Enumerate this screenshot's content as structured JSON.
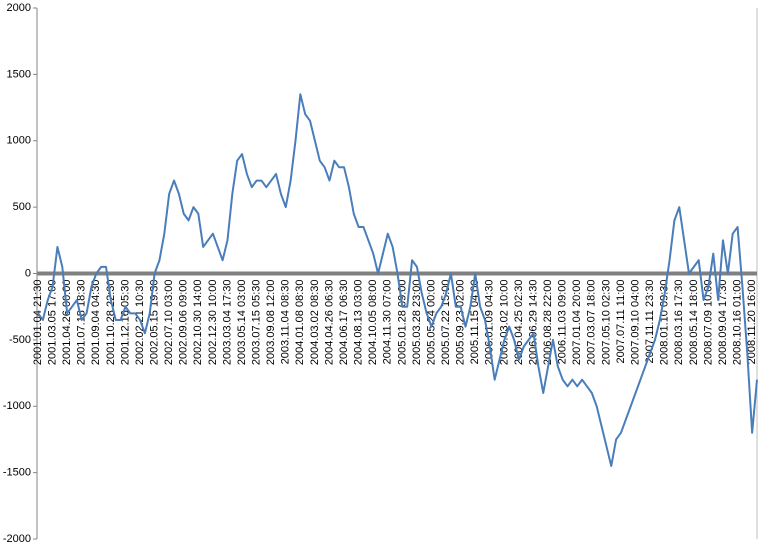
{
  "chart_data": {
    "type": "line",
    "categories": [
      "2001.01.04 21:30",
      null,
      null,
      "2001.03.05 17:00",
      null,
      null,
      "2001.04.26 00:00",
      null,
      null,
      "2001.07.18 18:30",
      null,
      null,
      "2001.09.04 04:30",
      null,
      null,
      "2001.10.28 22:30",
      null,
      null,
      "2001.12.16 05:30",
      null,
      null,
      "2002.02.21 10:30",
      null,
      null,
      "2002.05.15 19:30",
      null,
      null,
      "2002.07.10 03:00",
      null,
      null,
      "2002.09.06 09:00",
      null,
      null,
      "2002.10.30 14:00",
      null,
      null,
      "2002.12.30 10:00",
      null,
      null,
      "2003.03.04 17:30",
      null,
      null,
      "2003.05.14 03:00",
      null,
      null,
      "2003.07.15 05:30",
      null,
      null,
      "2003.09.08 12:00",
      null,
      null,
      "2003.11.04 08:30",
      null,
      null,
      "2004.01.08 08:30",
      null,
      null,
      "2004.03.02 08:30",
      null,
      null,
      "2004.04.26 06:30",
      null,
      null,
      "2004.06.17 06:30",
      null,
      null,
      "2004.08.13 03:00",
      null,
      null,
      "2004.10.05 08:00",
      null,
      null,
      "2004.11.30 07:00",
      null,
      null,
      "2005.01.28 09:00",
      null,
      null,
      "2005.03.28 23:00",
      null,
      null,
      "2005.05.24 00:00",
      null,
      null,
      "2005.07.22 15:00",
      null,
      null,
      "2005.09.23 02:00",
      null,
      null,
      "2005.11.15 04:00",
      null,
      null,
      "2006.01.09 04:30",
      null,
      null,
      "2006.03.02 10:00",
      null,
      null,
      "2006.04.25 02:30",
      null,
      null,
      "2006.06.29 14:30",
      null,
      null,
      "2006.08.28 22:00",
      null,
      null,
      "2006.11.03 09:00",
      null,
      null,
      "2007.01.04 20:00",
      null,
      null,
      "2007.03.07 18:00",
      null,
      null,
      "2007.05.10 02:30",
      null,
      null,
      "2007.07.11 11:00",
      null,
      null,
      "2007.09.10 04:00",
      null,
      null,
      "2007.11.11 23:30",
      null,
      null,
      "2008.01.10 09:30",
      null,
      null,
      "2008.03.16 17:30",
      null,
      null,
      "2008.05.14 18:00",
      null,
      null,
      "2008.07.09 10:00",
      null,
      null,
      "2008.09.04 17:30",
      null,
      null,
      "2008.10.16 01:00",
      null,
      null,
      "2008.11.20 16:00",
      null
    ],
    "series": [
      {
        "color": "#4a7ebb",
        "values": [
          -300,
          -350,
          -200,
          -100,
          200,
          50,
          -300,
          -250,
          -200,
          -350,
          -300,
          -100,
          0,
          50,
          50,
          -200,
          -350,
          -350,
          -250,
          -300,
          -300,
          -350,
          -450,
          -300,
          0,
          100,
          300,
          600,
          700,
          600,
          450,
          400,
          500,
          450,
          200,
          250,
          300,
          200,
          100,
          250,
          600,
          850,
          900,
          750,
          650,
          700,
          700,
          650,
          700,
          750,
          600,
          500,
          700,
          1000,
          1350,
          1200,
          1150,
          1000,
          850,
          800,
          700,
          850,
          800,
          800,
          650,
          450,
          350,
          350,
          250,
          150,
          0,
          150,
          300,
          200,
          0,
          -250,
          -250,
          100,
          50,
          -150,
          -300,
          -400,
          -300,
          -250,
          -150,
          0,
          -250,
          -250,
          -400,
          -250,
          0,
          -250,
          -350,
          -550,
          -800,
          -650,
          -500,
          -400,
          -500,
          -650,
          -550,
          -500,
          -450,
          -700,
          -900,
          -700,
          -500,
          -700,
          -800,
          -850,
          -800,
          -850,
          -800,
          -850,
          -900,
          -1000,
          -1150,
          -1300,
          -1450,
          -1250,
          -1200,
          -1100,
          -1000,
          -900,
          -800,
          -700,
          -600,
          -500,
          -350,
          -150,
          100,
          400,
          500,
          250,
          0,
          50,
          100,
          -200,
          -100,
          150,
          -200,
          250,
          0,
          300,
          350,
          -100,
          -600,
          -1200,
          -800
        ]
      }
    ],
    "ylim": [
      -2000,
      2000
    ],
    "yticks": [
      -2000,
      -1500,
      -1000,
      -500,
      0,
      500,
      1000,
      1500,
      2000
    ]
  }
}
